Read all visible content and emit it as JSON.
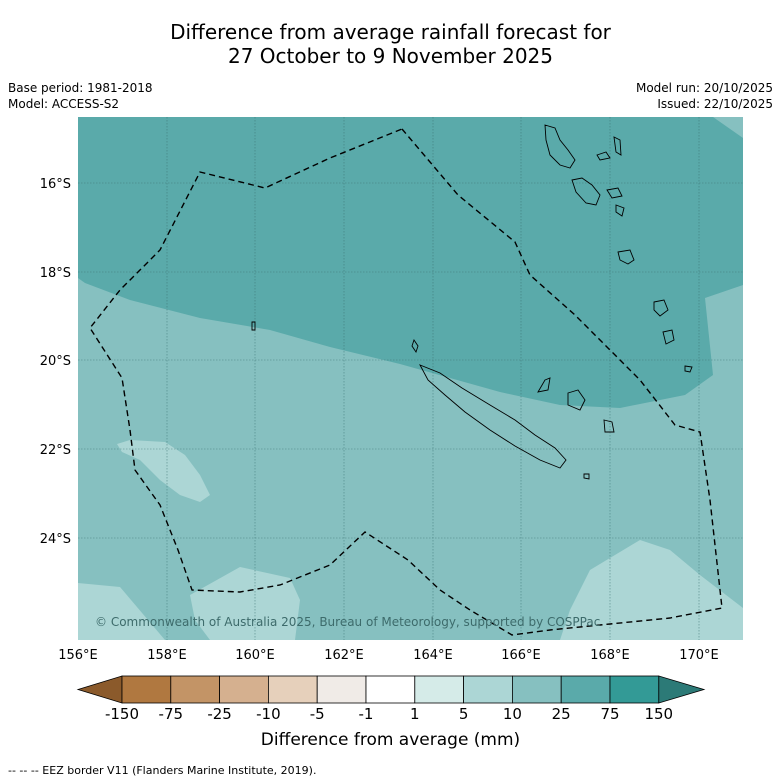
{
  "title_line1": "Difference from average rainfall forecast for",
  "title_line2": "27 October to 9 November 2025",
  "base_period": "Base period: 1981-2018",
  "model": "Model: ACCESS-S2",
  "model_run": "Model run: 20/10/2025",
  "issued": "Issued: 22/10/2025",
  "lat_labels": [
    "16°S",
    "18°S",
    "20°S",
    "22°S",
    "24°S"
  ],
  "lon_labels": [
    "156°E",
    "158°E",
    "160°E",
    "162°E",
    "164°E",
    "166°E",
    "168°E",
    "170°E"
  ],
  "copyright": "© Commonwealth of Australia 2025, Bureau of Meteorology, supported by COSPPac",
  "colorbar": {
    "labels": [
      "-150",
      "-75",
      "-25",
      "-10",
      "-5",
      "-1",
      "1",
      "5",
      "10",
      "25",
      "75",
      "150"
    ],
    "colors": [
      "#8b5a2b",
      "#b07840",
      "#c39466",
      "#d5b08f",
      "#e6d0bb",
      "#f0ebe7",
      "#ffffff",
      "#d5ebe8",
      "#acd6d5",
      "#86c0c0",
      "#5aaaaa",
      "#339a96",
      "#2c7a77"
    ],
    "title": "Difference from average (mm)"
  },
  "footnote": "--  --  -- EEZ border V11 (Flanders Marine Institute, 2019)."
}
